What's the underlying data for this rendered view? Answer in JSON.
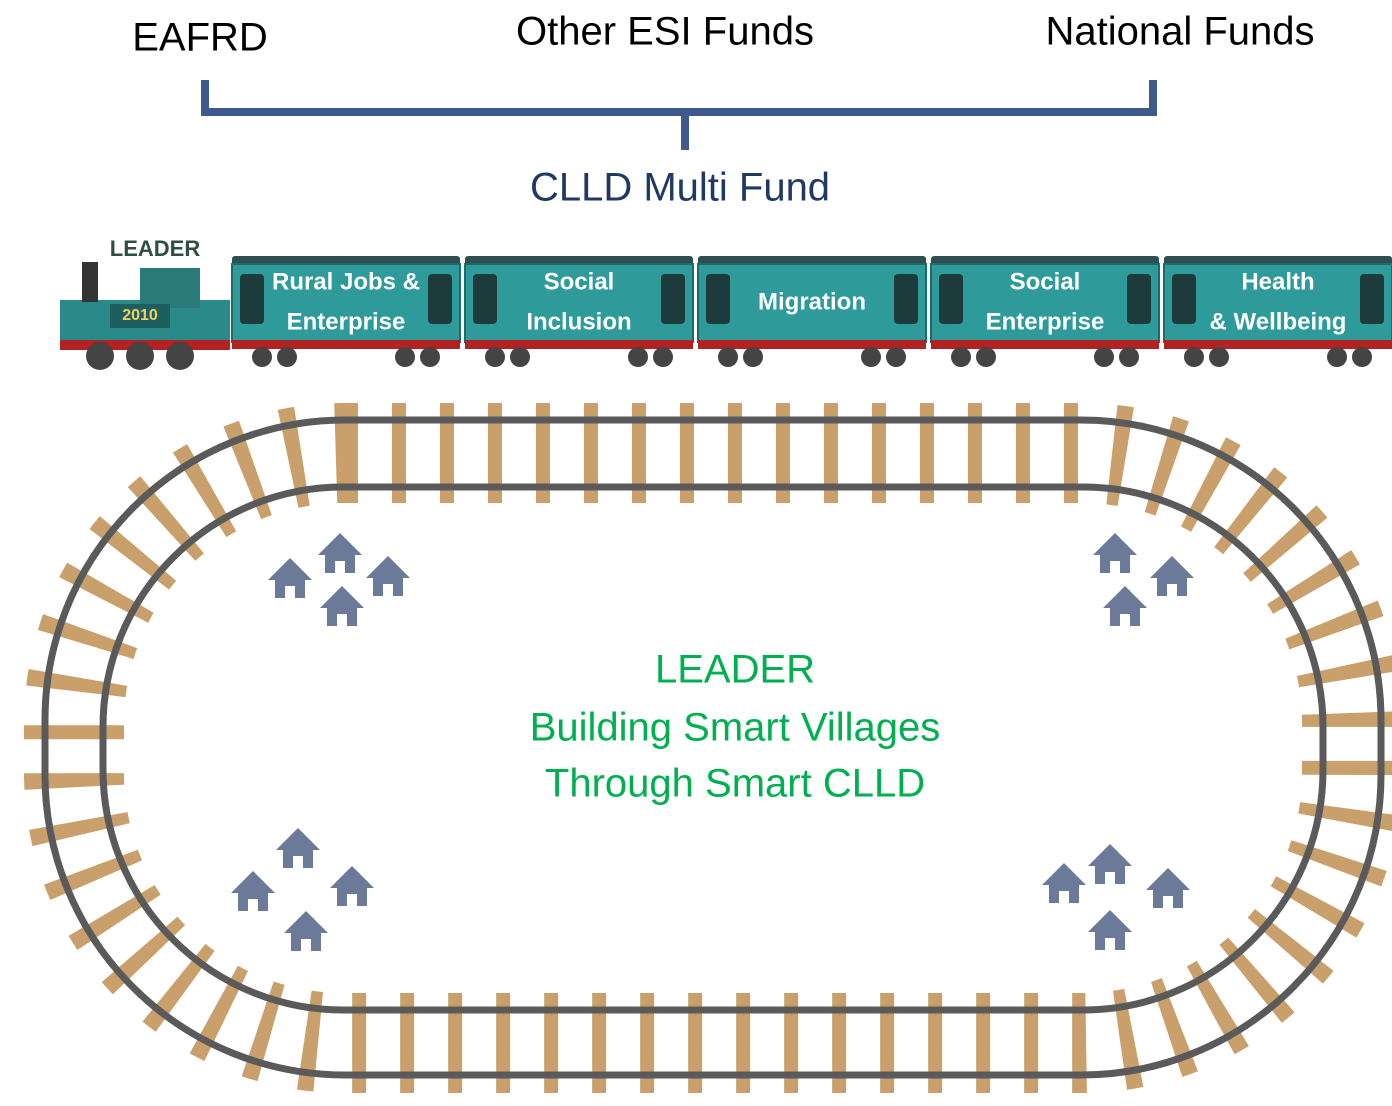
{
  "funds": [
    "EAFRD",
    "Other ESI Funds",
    "National Funds"
  ],
  "bracket_label": "CLLD Multi Fund",
  "engine": {
    "label": "LEADER",
    "number": "2010"
  },
  "carriages": [
    {
      "lines": [
        "Rural Jobs &",
        "Enterprise"
      ]
    },
    {
      "lines": [
        "Social",
        "Inclusion"
      ]
    },
    {
      "lines": [
        "Migration"
      ]
    },
    {
      "lines": [
        "Social",
        "Enterprise"
      ]
    },
    {
      "lines": [
        "Health",
        "& Wellbeing"
      ]
    }
  ],
  "center_text": [
    "LEADER",
    "Building Smart Villages",
    "Through Smart CLLD"
  ]
}
